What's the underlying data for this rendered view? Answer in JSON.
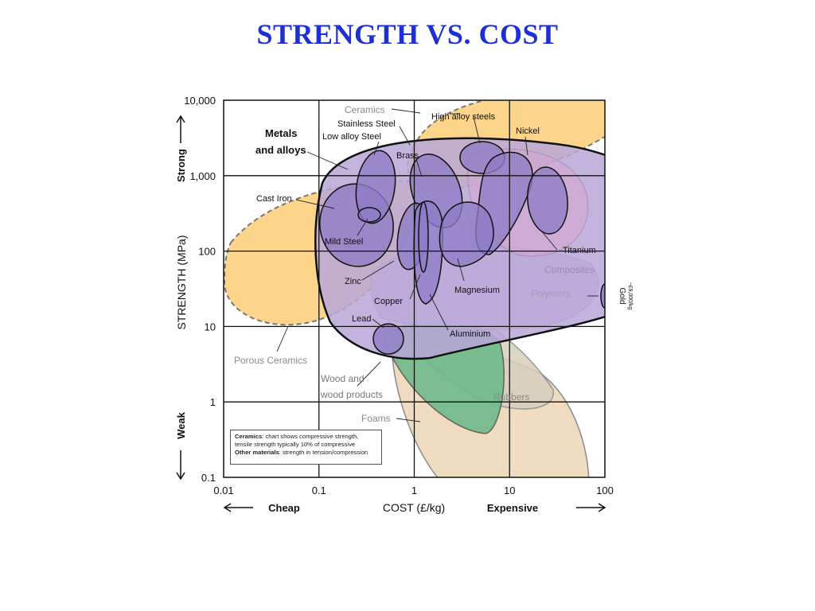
{
  "page": {
    "title": "STRENGTH VS. COST"
  },
  "colors": {
    "title": "#1f2fd6",
    "ceramics": "#fcd48a",
    "metals_envelope": "#b9a7d8",
    "metal_bubble": "#8d7cc6",
    "polymers": "#cfc3e0",
    "composites": "#d7a6cf",
    "wood": "#6fba8a",
    "foams": "#efdcc0",
    "rubbers": "#d6d0bd",
    "outline": "#111111",
    "grid": "#111111"
  },
  "chart_data": {
    "type": "scatter",
    "title": "STRENGTH VS. COST",
    "xlabel": "COST (£/kg)",
    "ylabel": "STRENGTH (MPa)",
    "x_scale": "log",
    "y_scale": "log",
    "xlim": [
      0.01,
      100
    ],
    "ylim": [
      0.1,
      10000
    ],
    "x_ticks": [
      "0.01",
      "0.1",
      "1",
      "10",
      "100"
    ],
    "y_ticks": [
      "10,000",
      "1,000",
      "100",
      "10",
      "1",
      "0.1"
    ],
    "x_ends": {
      "left": "Cheap",
      "right": "Expensive"
    },
    "y_ends": {
      "top": "Strong",
      "bottom": "Weak"
    },
    "grid": true,
    "families": [
      {
        "name": "Ceramics",
        "kind": "dashed-envelope"
      },
      {
        "name": "Porous Ceramics",
        "kind": "dashed-envelope"
      },
      {
        "name": "Metals and alloys",
        "kind": "envelope"
      },
      {
        "name": "Composites",
        "kind": "envelope"
      },
      {
        "name": "Polymers",
        "kind": "envelope"
      },
      {
        "name": "Wood and wood products",
        "kind": "envelope"
      },
      {
        "name": "Rubbers",
        "kind": "envelope"
      },
      {
        "name": "Foams",
        "kind": "envelope"
      }
    ],
    "materials": [
      {
        "name": "Stainless Steel",
        "cost": [
          0.3,
          0.7
        ],
        "strength": [
          170,
          1500
        ]
      },
      {
        "name": "High alloy steels",
        "cost": [
          3,
          9
        ],
        "strength": [
          1000,
          2400
        ]
      },
      {
        "name": "Low alloy Steel",
        "cost": [
          0.22,
          0.65
        ],
        "strength": [
          150,
          1400
        ]
      },
      {
        "name": "Brass",
        "cost": [
          1,
          4
        ],
        "strength": [
          70,
          1500
        ]
      },
      {
        "name": "Nickel",
        "cost": [
          5,
          17
        ],
        "strength": [
          100,
          1600
        ]
      },
      {
        "name": "Cast Iron",
        "cost": [
          0.11,
          0.3
        ],
        "strength": [
          130,
          600
        ]
      },
      {
        "name": "Mild Steel",
        "cost": [
          0.11,
          0.6
        ],
        "strength": [
          60,
          700
        ]
      },
      {
        "name": "Titanium",
        "cost": [
          15,
          55
        ],
        "strength": [
          200,
          1200
        ]
      },
      {
        "name": "Zinc",
        "cost": [
          0.8,
          1.8
        ],
        "strength": [
          60,
          400
        ]
      },
      {
        "name": "Copper",
        "cost": [
          1,
          2
        ],
        "strength": [
          30,
          400
        ]
      },
      {
        "name": "Magnesium",
        "cost": [
          1.5,
          10
        ],
        "strength": [
          70,
          400
        ]
      },
      {
        "name": "Lead",
        "cost": [
          0.45,
          0.75
        ],
        "strength": [
          4,
          11
        ]
      },
      {
        "name": "Aluminium",
        "cost": [
          1,
          4
        ],
        "strength": [
          20,
          500
        ]
      },
      {
        "name": "Gold",
        "cost": [
          90,
          100
        ],
        "strength": [
          20,
          40
        ]
      }
    ],
    "gold_note": "~£9,000/kg",
    "notes": [
      {
        "term": "Ceramics",
        "text": ": chart shows compressive strength,"
      },
      {
        "term": "",
        "text": "tensile strength typically 10% of compressive"
      },
      {
        "term": "Other materials",
        "text": ": strength in tension/compression"
      }
    ]
  }
}
